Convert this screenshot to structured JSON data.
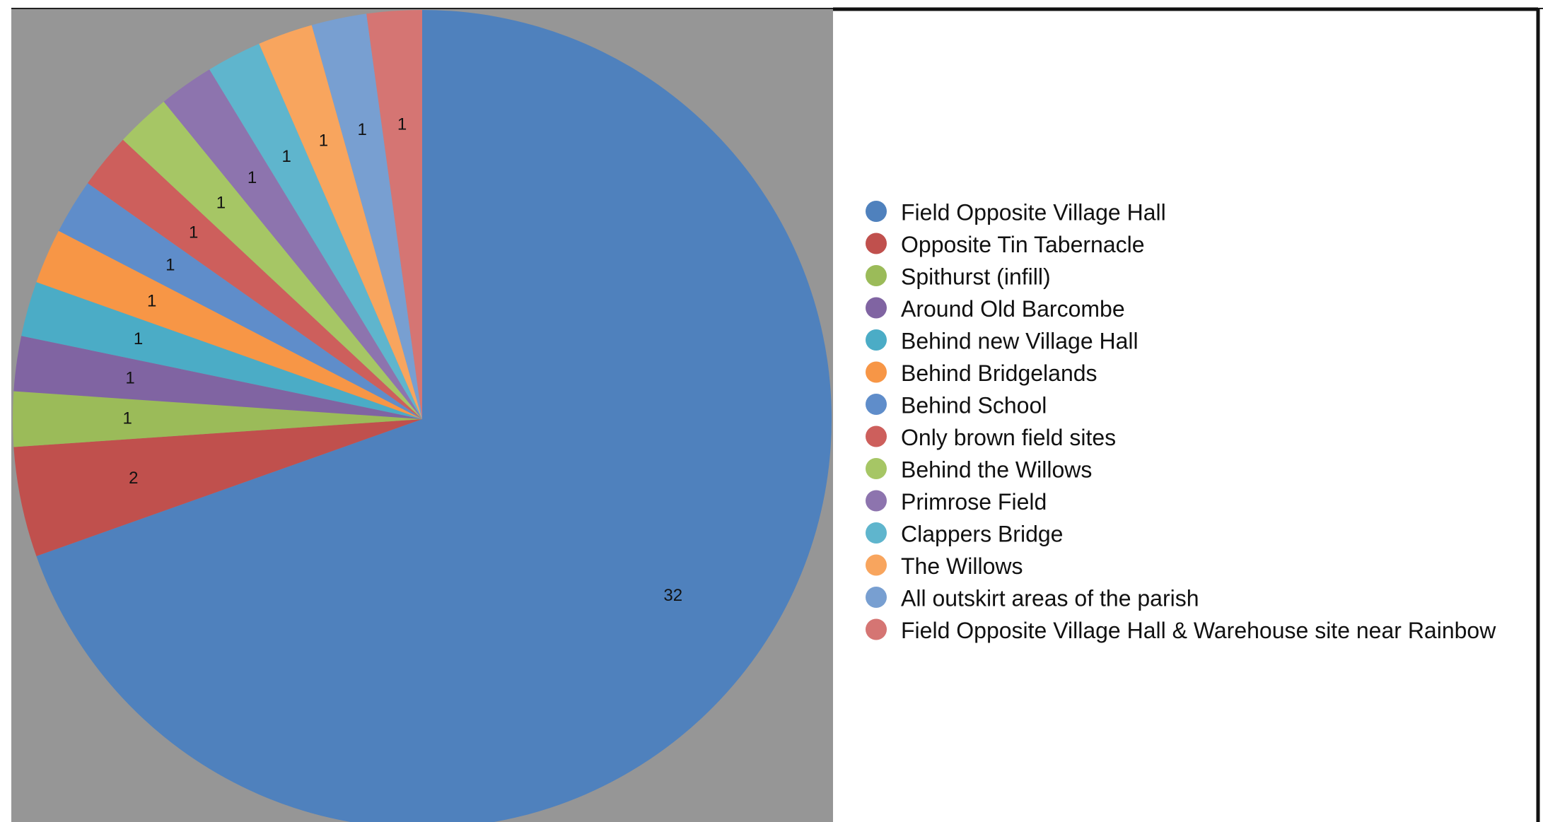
{
  "chart_data": {
    "type": "pie",
    "title": "",
    "legend_position": "right",
    "plot_background": "#969696",
    "slices": [
      {
        "label": "Field Opposite Village Hall",
        "value": 32,
        "color": "#4F81BD"
      },
      {
        "label": "Opposite Tin Tabernacle",
        "value": 2,
        "color": "#C0504D"
      },
      {
        "label": "Spithurst (infill)",
        "value": 1,
        "color": "#9BBB59"
      },
      {
        "label": "Around Old Barcombe",
        "value": 1,
        "color": "#8064A2"
      },
      {
        "label": "Behind new Village Hall",
        "value": 1,
        "color": "#4BACC6"
      },
      {
        "label": "Behind Bridgelands",
        "value": 1,
        "color": "#F79646"
      },
      {
        "label": "Behind School",
        "value": 1,
        "color": "#5F8DCA"
      },
      {
        "label": "Only brown field sites",
        "value": 1,
        "color": "#CD5F5C"
      },
      {
        "label": "Behind the Willows",
        "value": 1,
        "color": "#A6C665"
      },
      {
        "label": "Primrose Field",
        "value": 1,
        "color": "#8D74AE"
      },
      {
        "label": "Clappers Bridge",
        "value": 1,
        "color": "#5FB5CD"
      },
      {
        "label": "The Willows",
        "value": 1,
        "color": "#F8A55E"
      },
      {
        "label": "All outskirt areas of the parish",
        "value": 1,
        "color": "#789FD1"
      },
      {
        "label": "Field Opposite Village Hall & Warehouse site near Rainbow",
        "value": 1,
        "color": "#D57573"
      }
    ]
  }
}
